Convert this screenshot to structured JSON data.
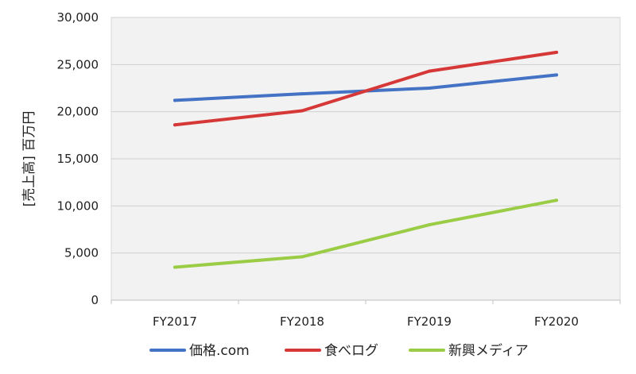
{
  "chart_data": {
    "type": "line",
    "title": "",
    "xlabel": "",
    "ylabel": "[売上高] 百万円",
    "categories": [
      "FY2017",
      "FY2018",
      "FY2019",
      "FY2020"
    ],
    "ylim": [
      0,
      30000
    ],
    "yticks": [
      0,
      5000,
      10000,
      15000,
      20000,
      25000,
      30000
    ],
    "ytick_labels": [
      "0",
      "5,000",
      "10,000",
      "15,000",
      "20,000",
      "25,000",
      "30,000"
    ],
    "grid": "horizontal",
    "legend_position": "bottom",
    "series": [
      {
        "name": "価格.com",
        "color": "#4472c4",
        "values": [
          21200,
          21900,
          22500,
          23900
        ]
      },
      {
        "name": "食べログ",
        "color": "#d63838",
        "values": [
          18600,
          20100,
          24300,
          26300
        ]
      },
      {
        "name": "新興メディア",
        "color": "#9bcc45",
        "values": [
          3500,
          4600,
          8000,
          10600
        ]
      }
    ]
  }
}
